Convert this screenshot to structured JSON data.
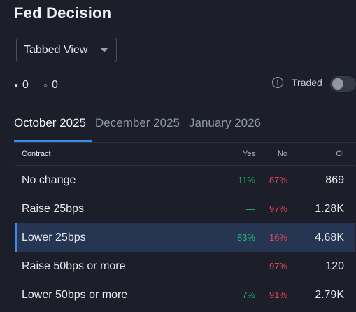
{
  "page": {
    "title": "Fed Decision"
  },
  "view_select": {
    "value": "Tabbed View"
  },
  "counts": {
    "filled": "0",
    "hollow": "0"
  },
  "traded": {
    "label": "Traded",
    "enabled": false
  },
  "tabs": [
    {
      "label": "October 2025",
      "active": true
    },
    {
      "label": "December 2025",
      "active": false
    },
    {
      "label": "January 2026",
      "active": false
    }
  ],
  "table": {
    "headers": {
      "contract": "Contract",
      "yes": "Yes",
      "no": "No",
      "oi": "OI"
    },
    "rows": [
      {
        "contract": "No change",
        "yes": "11%",
        "no": "87%",
        "oi": "869",
        "selected": false
      },
      {
        "contract": "Raise 25bps",
        "yes": "—",
        "no": "97%",
        "oi": "1.28K",
        "selected": false
      },
      {
        "contract": "Lower 25bps",
        "yes": "83%",
        "no": "16%",
        "oi": "4.68K",
        "selected": true
      },
      {
        "contract": "Raise 50bps or more",
        "yes": "—",
        "no": "97%",
        "oi": "120",
        "selected": false
      },
      {
        "contract": "Lower 50bps or more",
        "yes": "7%",
        "no": "91%",
        "oi": "2.79K",
        "selected": false
      }
    ]
  },
  "colors": {
    "background": "#1c1f2a",
    "accent": "#3d8be8",
    "yes": "#22b573",
    "no": "#e0455b",
    "selected_row": "#263552"
  }
}
